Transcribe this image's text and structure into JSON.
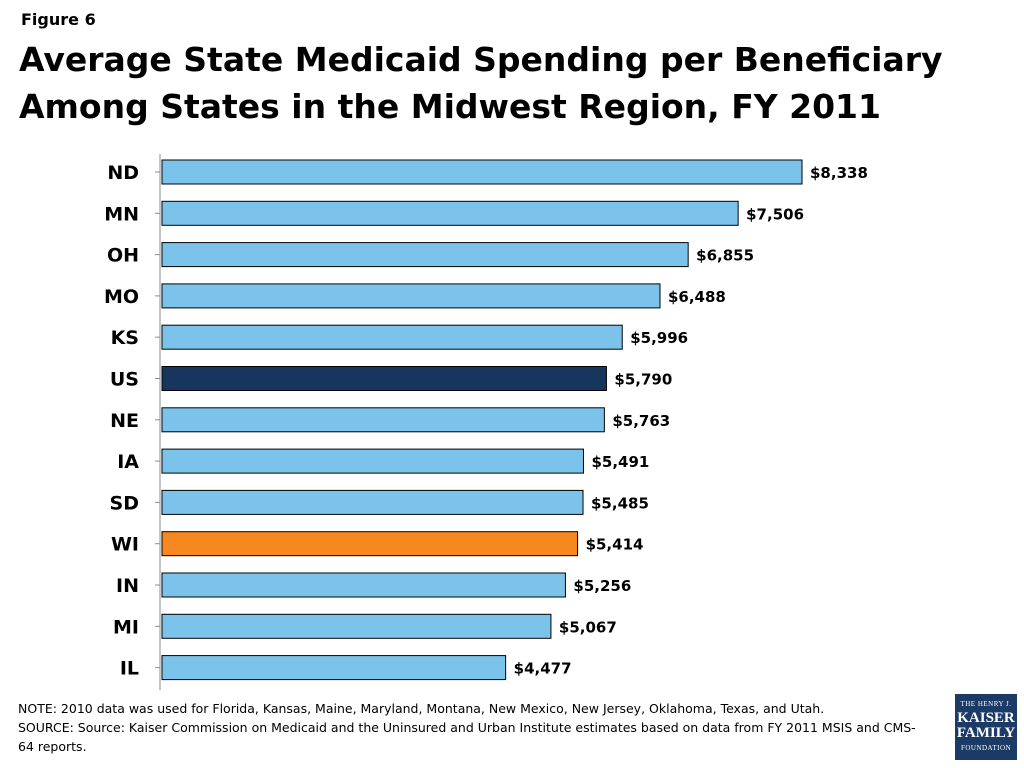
{
  "figure_label": "Figure 6",
  "title": "Average State Medicaid Spending per Beneficiary Among States in the Midwest Region, FY 2011",
  "chart_data": {
    "type": "bar",
    "orientation": "horizontal",
    "categories": [
      "ND",
      "MN",
      "OH",
      "MO",
      "KS",
      "US",
      "NE",
      "IA",
      "SD",
      "WI",
      "IN",
      "MI",
      "IL"
    ],
    "values": [
      8338,
      7506,
      6855,
      6488,
      5996,
      5790,
      5763,
      5491,
      5485,
      5414,
      5256,
      5067,
      4477
    ],
    "value_labels": [
      "$8,338",
      "$7,506",
      "$6,855",
      "$6,488",
      "$5,996",
      "$5,790",
      "$5,763",
      "$5,491",
      "$5,485",
      "$5,414",
      "$5,256",
      "$5,067",
      "$4,477"
    ],
    "colors": {
      "default": "#7cc3eb",
      "US": "#17365d",
      "WI": "#f6881f"
    },
    "xlim": [
      0,
      8338
    ]
  },
  "notes": {
    "note": "NOTE: 2010 data was used for Florida, Kansas, Maine, Maryland, Montana, New Mexico, New Jersey, Oklahoma, Texas, and Utah.",
    "source_line1": "SOURCE:   Source: Kaiser Commission on Medicaid and the Uninsured and Urban Institute estimates based on data from FY 2011 MSIS and CMS-",
    "source_line2": "64 reports."
  },
  "logo": {
    "line1": "THE HENRY J.",
    "line2": "KAISER",
    "line3": "FAMILY",
    "line4": "FOUNDATION"
  }
}
